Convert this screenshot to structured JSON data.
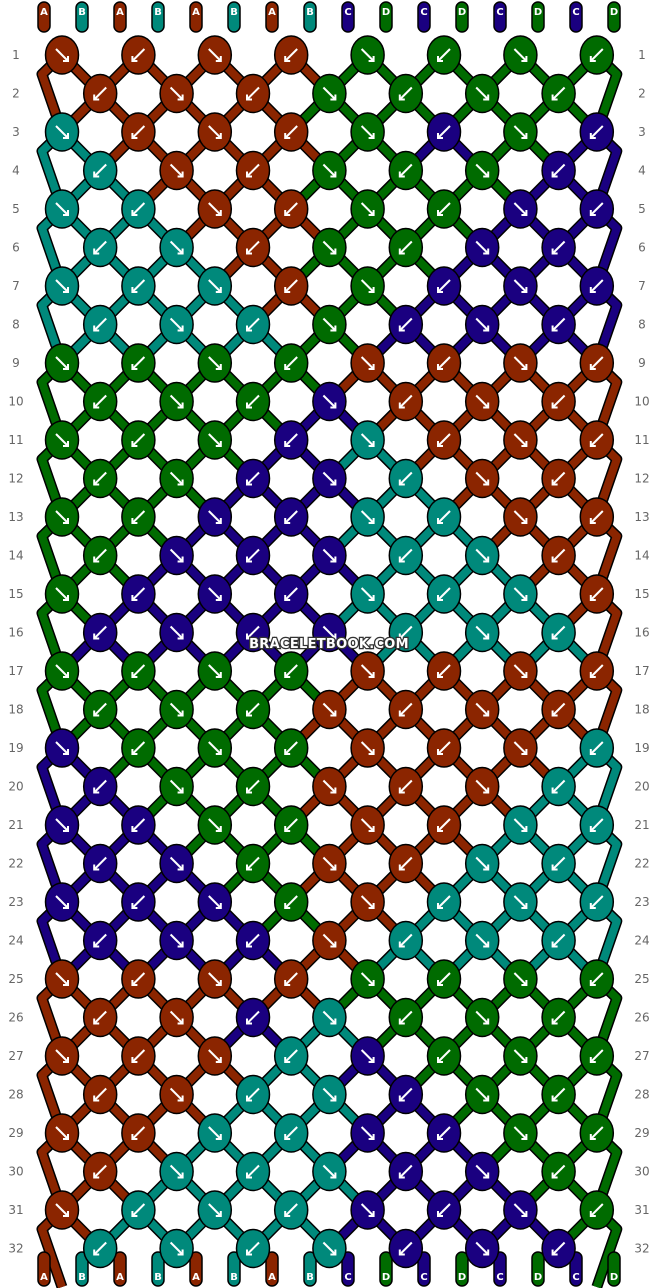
{
  "colors": {
    "A": "#8b2500",
    "B": "#00897b",
    "C": "#1a0080",
    "D": "#006b00"
  },
  "top_labels": [
    "A",
    "B",
    "A",
    "B",
    "A",
    "B",
    "A",
    "B",
    "C",
    "D",
    "C",
    "D",
    "C",
    "D",
    "C",
    "D"
  ],
  "bottom_labels": [
    "A",
    "B",
    "A",
    "B",
    "A",
    "B",
    "A",
    "B",
    "C",
    "D",
    "C",
    "D",
    "C",
    "D",
    "C",
    "D"
  ],
  "row_numbers": [
    "1",
    "2",
    "3",
    "4",
    "5",
    "6",
    "7",
    "8",
    "9",
    "10",
    "11",
    "12",
    "13",
    "14",
    "15",
    "16",
    "17",
    "18",
    "19",
    "20",
    "21",
    "22",
    "23",
    "24",
    "25",
    "26",
    "27",
    "28",
    "29",
    "30",
    "31",
    "32"
  ],
  "watermark": "BRACELETBOOK.COM",
  "knots": [
    [
      "A",
      "A",
      "A",
      "A",
      "D",
      "D",
      "D",
      "D"
    ],
    [
      "A",
      "A",
      "A",
      "D",
      "D",
      "D",
      "D"
    ],
    [
      "B",
      "A",
      "A",
      "A",
      "D",
      "C",
      "D",
      "C"
    ],
    [
      "B",
      "A",
      "A",
      "D",
      "D",
      "D",
      "C"
    ],
    [
      "B",
      "B",
      "A",
      "A",
      "D",
      "D",
      "C",
      "C"
    ],
    [
      "B",
      "B",
      "A",
      "D",
      "D",
      "C",
      "C"
    ],
    [
      "B",
      "B",
      "B",
      "A",
      "D",
      "C",
      "C",
      "C"
    ],
    [
      "B",
      "B",
      "B",
      "D",
      "C",
      "C",
      "C"
    ],
    [
      "D",
      "D",
      "D",
      "D",
      "A",
      "A",
      "A",
      "A"
    ],
    [
      "D",
      "D",
      "D",
      "C",
      "A",
      "A",
      "A"
    ],
    [
      "D",
      "D",
      "D",
      "C",
      "B",
      "A",
      "A",
      "A"
    ],
    [
      "D",
      "D",
      "C",
      "C",
      "B",
      "A",
      "A"
    ],
    [
      "D",
      "D",
      "C",
      "C",
      "B",
      "B",
      "A",
      "A"
    ],
    [
      "D",
      "C",
      "C",
      "C",
      "B",
      "B",
      "A"
    ],
    [
      "D",
      "C",
      "C",
      "C",
      "B",
      "B",
      "B",
      "A"
    ],
    [
      "C",
      "C",
      "C",
      "C",
      "B",
      "B",
      "B"
    ],
    [
      "D",
      "D",
      "D",
      "D",
      "A",
      "A",
      "A",
      "A"
    ],
    [
      "D",
      "D",
      "D",
      "A",
      "A",
      "A",
      "A"
    ],
    [
      "C",
      "D",
      "D",
      "D",
      "A",
      "A",
      "A",
      "B"
    ],
    [
      "C",
      "D",
      "D",
      "A",
      "A",
      "A",
      "B"
    ],
    [
      "C",
      "C",
      "D",
      "D",
      "A",
      "A",
      "B",
      "B"
    ],
    [
      "C",
      "C",
      "D",
      "A",
      "A",
      "B",
      "B"
    ],
    [
      "C",
      "C",
      "C",
      "D",
      "A",
      "B",
      "B",
      "B"
    ],
    [
      "C",
      "C",
      "C",
      "A",
      "B",
      "B",
      "B"
    ],
    [
      "A",
      "A",
      "A",
      "A",
      "D",
      "D",
      "D",
      "D"
    ],
    [
      "A",
      "A",
      "C",
      "B",
      "D",
      "D",
      "D"
    ],
    [
      "A",
      "A",
      "A",
      "B",
      "C",
      "D",
      "D",
      "D"
    ],
    [
      "A",
      "A",
      "B",
      "B",
      "C",
      "D",
      "D"
    ],
    [
      "A",
      "A",
      "B",
      "B",
      "C",
      "C",
      "D",
      "D"
    ],
    [
      "A",
      "B",
      "B",
      "B",
      "C",
      "C",
      "D"
    ],
    [
      "A",
      "B",
      "B",
      "B",
      "C",
      "C",
      "C",
      "D"
    ],
    [
      "B",
      "B",
      "B",
      "B",
      "C",
      "C",
      "C"
    ]
  ]
}
